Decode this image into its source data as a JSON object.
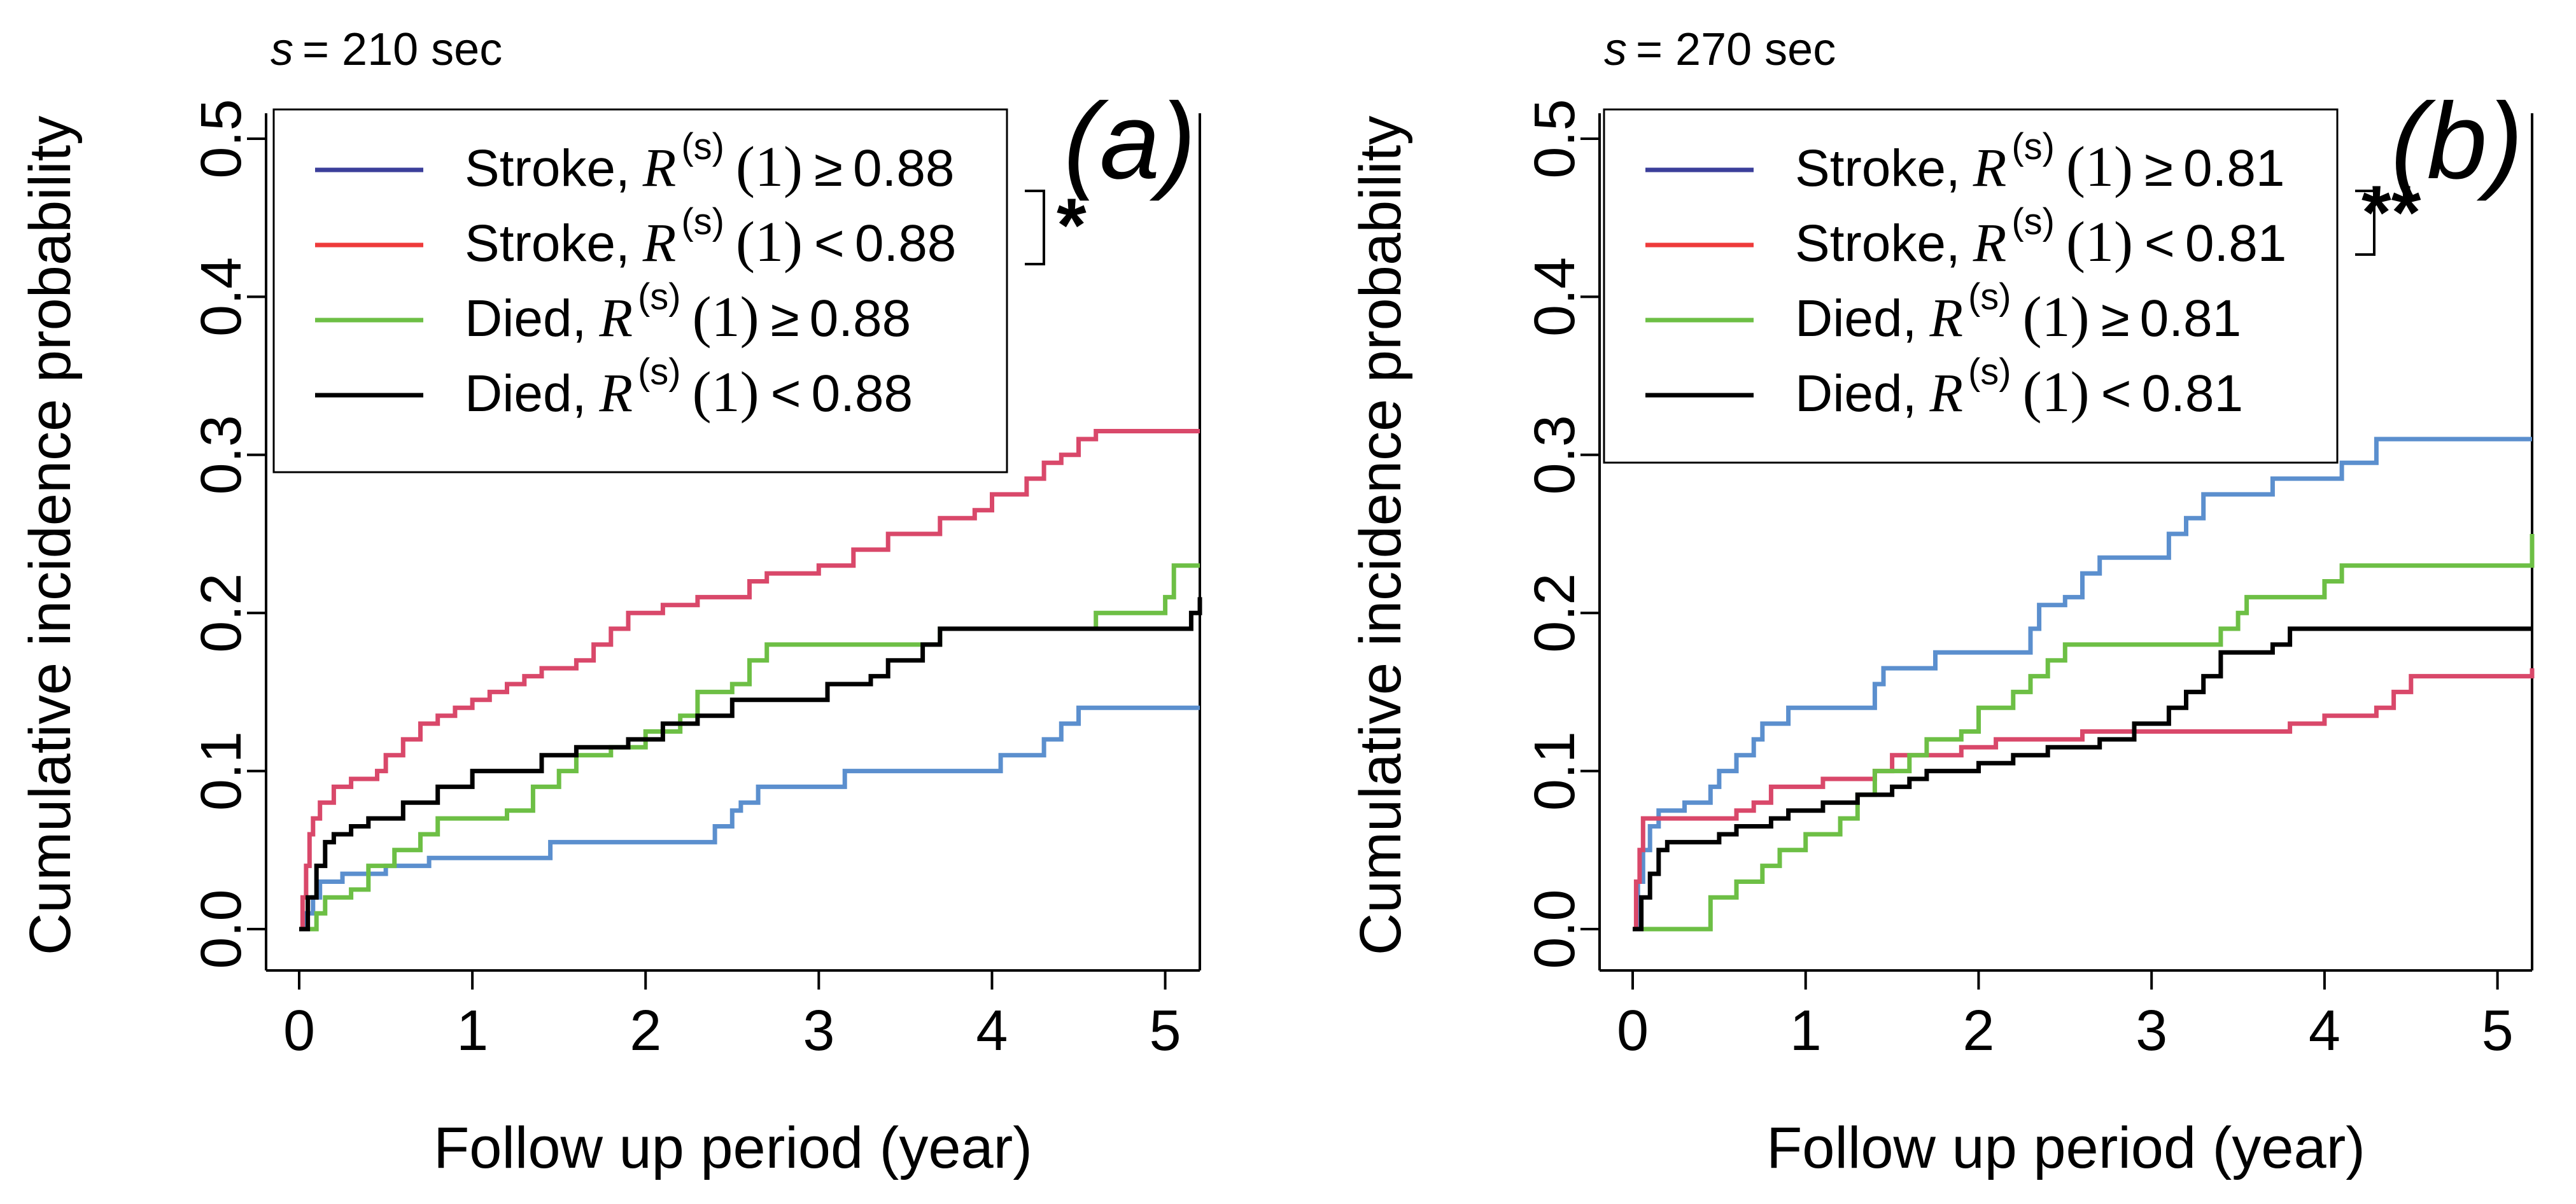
{
  "colors": {
    "stroke_high": "#5b8fce",
    "stroke_low": "#d9486a",
    "died_high": "#6dbf45",
    "died_low": "#000000",
    "legend_stroke_high": "#3b3f9a",
    "legend_stroke_low": "#ee3b3b"
  },
  "chart_data": [
    {
      "panel_label": "(a)",
      "s_prefix": "s",
      "s_value": "= 210 sec",
      "type": "line",
      "ylabel": "Cumulative incidence probability",
      "xlabel": "Follow up period (year)",
      "xlim": [
        0,
        5.2
      ],
      "ylim": [
        0,
        0.5
      ],
      "xticks": [
        0,
        1,
        2,
        3,
        4,
        5
      ],
      "yticks": [
        0.0,
        0.1,
        0.2,
        0.3,
        0.4,
        0.5
      ],
      "ytick_labels": [
        "0.0",
        "0.1",
        "0.2",
        "0.3",
        "0.4",
        "0.5"
      ],
      "significance": "*",
      "legend": [
        {
          "group": "Stroke,",
          "R": "R",
          "sup": "(s)",
          "arg": "(1)",
          "op": "≥",
          "threshold": "0.88",
          "color": "legend_stroke_high"
        },
        {
          "group": "Stroke,",
          "R": "R",
          "sup": "(s)",
          "arg": "(1)",
          "op": "<",
          "threshold": "0.88",
          "color": "legend_stroke_low"
        },
        {
          "group": "Died,",
          "R": "R",
          "sup": "(s)",
          "arg": "(1)",
          "op": "≥",
          "threshold": "0.88",
          "color": "died_high"
        },
        {
          "group": "Died,",
          "R": "R",
          "sup": "(s)",
          "arg": "(1)",
          "op": "<",
          "threshold": "0.88",
          "color": "died_low"
        }
      ],
      "series": [
        {
          "name": "Stroke, R(s)(1) ≥ 0.88",
          "color": "stroke_high",
          "points": [
            [
              0,
              0
            ],
            [
              0.03,
              0.01
            ],
            [
              0.08,
              0.02
            ],
            [
              0.12,
              0.03
            ],
            [
              0.25,
              0.035
            ],
            [
              0.5,
              0.04
            ],
            [
              0.75,
              0.045
            ],
            [
              1.2,
              0.045
            ],
            [
              1.45,
              0.055
            ],
            [
              2.3,
              0.055
            ],
            [
              2.4,
              0.065
            ],
            [
              2.5,
              0.075
            ],
            [
              2.55,
              0.08
            ],
            [
              2.65,
              0.09
            ],
            [
              3.1,
              0.09
            ],
            [
              3.15,
              0.1
            ],
            [
              4.0,
              0.1
            ],
            [
              4.05,
              0.11
            ],
            [
              4.3,
              0.12
            ],
            [
              4.4,
              0.13
            ],
            [
              4.5,
              0.14
            ],
            [
              5.2,
              0.14
            ]
          ]
        },
        {
          "name": "Stroke, R(s)(1) < 0.88",
          "color": "stroke_low",
          "points": [
            [
              0,
              0
            ],
            [
              0.02,
              0.02
            ],
            [
              0.04,
              0.04
            ],
            [
              0.06,
              0.06
            ],
            [
              0.08,
              0.07
            ],
            [
              0.12,
              0.08
            ],
            [
              0.2,
              0.09
            ],
            [
              0.3,
              0.095
            ],
            [
              0.45,
              0.1
            ],
            [
              0.5,
              0.11
            ],
            [
              0.6,
              0.12
            ],
            [
              0.7,
              0.13
            ],
            [
              0.8,
              0.135
            ],
            [
              0.9,
              0.14
            ],
            [
              1.0,
              0.145
            ],
            [
              1.1,
              0.15
            ],
            [
              1.2,
              0.155
            ],
            [
              1.3,
              0.16
            ],
            [
              1.4,
              0.165
            ],
            [
              1.6,
              0.17
            ],
            [
              1.7,
              0.18
            ],
            [
              1.8,
              0.19
            ],
            [
              1.9,
              0.2
            ],
            [
              2.1,
              0.205
            ],
            [
              2.3,
              0.21
            ],
            [
              2.6,
              0.22
            ],
            [
              2.7,
              0.225
            ],
            [
              3.0,
              0.23
            ],
            [
              3.2,
              0.24
            ],
            [
              3.4,
              0.25
            ],
            [
              3.7,
              0.26
            ],
            [
              3.9,
              0.265
            ],
            [
              4.0,
              0.275
            ],
            [
              4.2,
              0.285
            ],
            [
              4.3,
              0.295
            ],
            [
              4.4,
              0.3
            ],
            [
              4.5,
              0.31
            ],
            [
              4.6,
              0.315
            ],
            [
              5.2,
              0.315
            ]
          ]
        },
        {
          "name": "Died, R(s)(1) ≥ 0.88",
          "color": "died_high",
          "points": [
            [
              0,
              0
            ],
            [
              0.1,
              0.01
            ],
            [
              0.15,
              0.02
            ],
            [
              0.3,
              0.025
            ],
            [
              0.4,
              0.04
            ],
            [
              0.55,
              0.05
            ],
            [
              0.7,
              0.06
            ],
            [
              0.8,
              0.07
            ],
            [
              1.2,
              0.075
            ],
            [
              1.35,
              0.09
            ],
            [
              1.5,
              0.1
            ],
            [
              1.6,
              0.11
            ],
            [
              1.8,
              0.115
            ],
            [
              2.0,
              0.125
            ],
            [
              2.2,
              0.135
            ],
            [
              2.3,
              0.15
            ],
            [
              2.5,
              0.155
            ],
            [
              2.6,
              0.17
            ],
            [
              2.7,
              0.18
            ],
            [
              3.6,
              0.18
            ],
            [
              3.7,
              0.19
            ],
            [
              4.5,
              0.19
            ],
            [
              4.6,
              0.2
            ],
            [
              5.0,
              0.21
            ],
            [
              5.05,
              0.23
            ],
            [
              5.2,
              0.23
            ]
          ]
        },
        {
          "name": "Died, R(s)(1) < 0.88",
          "color": "died_low",
          "points": [
            [
              0,
              0
            ],
            [
              0.05,
              0.02
            ],
            [
              0.1,
              0.04
            ],
            [
              0.15,
              0.055
            ],
            [
              0.2,
              0.06
            ],
            [
              0.3,
              0.065
            ],
            [
              0.4,
              0.07
            ],
            [
              0.6,
              0.08
            ],
            [
              0.8,
              0.09
            ],
            [
              1.0,
              0.1
            ],
            [
              1.3,
              0.1
            ],
            [
              1.4,
              0.11
            ],
            [
              1.6,
              0.115
            ],
            [
              1.9,
              0.12
            ],
            [
              2.1,
              0.13
            ],
            [
              2.3,
              0.135
            ],
            [
              2.5,
              0.145
            ],
            [
              3.0,
              0.145
            ],
            [
              3.05,
              0.155
            ],
            [
              3.3,
              0.16
            ],
            [
              3.4,
              0.17
            ],
            [
              3.6,
              0.18
            ],
            [
              3.7,
              0.19
            ],
            [
              4.5,
              0.19
            ],
            [
              5.1,
              0.19
            ],
            [
              5.15,
              0.2
            ],
            [
              5.2,
              0.21
            ]
          ]
        }
      ]
    },
    {
      "panel_label": "(b)",
      "s_prefix": "s",
      "s_value": "= 270 sec",
      "type": "line",
      "ylabel": "Cumulative incidence probability",
      "xlabel": "Follow up period (year)",
      "xlim": [
        0,
        5.2
      ],
      "ylim": [
        0,
        0.5
      ],
      "xticks": [
        0,
        1,
        2,
        3,
        4,
        5
      ],
      "yticks": [
        0.0,
        0.1,
        0.2,
        0.3,
        0.4,
        0.5
      ],
      "ytick_labels": [
        "0.0",
        "0.1",
        "0.2",
        "0.3",
        "0.4",
        "0.5"
      ],
      "significance": "**",
      "legend": [
        {
          "group": "Stroke,",
          "R": "R",
          "sup": "(s)",
          "arg": "(1)",
          "op": "≥",
          "threshold": "0.81",
          "color": "legend_stroke_high"
        },
        {
          "group": "Stroke,",
          "R": "R",
          "sup": "(s)",
          "arg": "(1)",
          "op": "<",
          "threshold": "0.81",
          "color": "legend_stroke_low"
        },
        {
          "group": "Died,",
          "R": "R",
          "sup": "(s)",
          "arg": "(1)",
          "op": "≥",
          "threshold": "0.81",
          "color": "died_high"
        },
        {
          "group": "Died,",
          "R": "R",
          "sup": "(s)",
          "arg": "(1)",
          "op": "<",
          "threshold": "0.81",
          "color": "died_low"
        }
      ],
      "series": [
        {
          "name": "Stroke, R(s)(1) ≥ 0.81",
          "color": "stroke_high",
          "points": [
            [
              0,
              0
            ],
            [
              0.03,
              0.03
            ],
            [
              0.06,
              0.05
            ],
            [
              0.1,
              0.065
            ],
            [
              0.15,
              0.075
            ],
            [
              0.3,
              0.08
            ],
            [
              0.45,
              0.09
            ],
            [
              0.5,
              0.1
            ],
            [
              0.6,
              0.11
            ],
            [
              0.7,
              0.12
            ],
            [
              0.75,
              0.13
            ],
            [
              0.9,
              0.14
            ],
            [
              1.3,
              0.14
            ],
            [
              1.4,
              0.155
            ],
            [
              1.45,
              0.165
            ],
            [
              1.7,
              0.165
            ],
            [
              1.75,
              0.175
            ],
            [
              2.2,
              0.175
            ],
            [
              2.3,
              0.19
            ],
            [
              2.35,
              0.205
            ],
            [
              2.5,
              0.21
            ],
            [
              2.6,
              0.225
            ],
            [
              2.7,
              0.235
            ],
            [
              3.0,
              0.235
            ],
            [
              3.1,
              0.25
            ],
            [
              3.2,
              0.26
            ],
            [
              3.3,
              0.275
            ],
            [
              3.6,
              0.275
            ],
            [
              3.7,
              0.285
            ],
            [
              4.0,
              0.285
            ],
            [
              4.1,
              0.295
            ],
            [
              4.3,
              0.31
            ],
            [
              5.2,
              0.31
            ]
          ]
        },
        {
          "name": "Stroke, R(s)(1) < 0.81",
          "color": "stroke_low",
          "points": [
            [
              0,
              0
            ],
            [
              0.02,
              0.03
            ],
            [
              0.04,
              0.05
            ],
            [
              0.06,
              0.07
            ],
            [
              0.5,
              0.07
            ],
            [
              0.6,
              0.075
            ],
            [
              0.7,
              0.08
            ],
            [
              0.8,
              0.09
            ],
            [
              1.1,
              0.095
            ],
            [
              1.4,
              0.1
            ],
            [
              1.5,
              0.11
            ],
            [
              1.9,
              0.115
            ],
            [
              2.1,
              0.12
            ],
            [
              2.6,
              0.125
            ],
            [
              3.7,
              0.125
            ],
            [
              3.8,
              0.13
            ],
            [
              4.0,
              0.135
            ],
            [
              4.3,
              0.14
            ],
            [
              4.4,
              0.15
            ],
            [
              4.5,
              0.16
            ],
            [
              5.2,
              0.165
            ]
          ]
        },
        {
          "name": "Died, R(s)(1) ≥ 0.81",
          "color": "died_high",
          "points": [
            [
              0,
              0
            ],
            [
              0.4,
              0.0
            ],
            [
              0.45,
              0.02
            ],
            [
              0.6,
              0.03
            ],
            [
              0.75,
              0.04
            ],
            [
              0.85,
              0.05
            ],
            [
              1.0,
              0.06
            ],
            [
              1.2,
              0.07
            ],
            [
              1.3,
              0.085
            ],
            [
              1.4,
              0.1
            ],
            [
              1.6,
              0.11
            ],
            [
              1.7,
              0.12
            ],
            [
              1.9,
              0.125
            ],
            [
              2.0,
              0.14
            ],
            [
              2.2,
              0.15
            ],
            [
              2.3,
              0.16
            ],
            [
              2.4,
              0.17
            ],
            [
              2.5,
              0.18
            ],
            [
              3.3,
              0.18
            ],
            [
              3.4,
              0.19
            ],
            [
              3.5,
              0.2
            ],
            [
              3.55,
              0.21
            ],
            [
              4.0,
              0.22
            ],
            [
              4.1,
              0.23
            ],
            [
              5.15,
              0.23
            ],
            [
              5.2,
              0.25
            ]
          ]
        },
        {
          "name": "Died, R(s)(1) < 0.81",
          "color": "died_low",
          "points": [
            [
              0,
              0
            ],
            [
              0.05,
              0.02
            ],
            [
              0.1,
              0.035
            ],
            [
              0.15,
              0.05
            ],
            [
              0.2,
              0.055
            ],
            [
              0.5,
              0.06
            ],
            [
              0.6,
              0.065
            ],
            [
              0.8,
              0.07
            ],
            [
              0.9,
              0.075
            ],
            [
              1.1,
              0.08
            ],
            [
              1.3,
              0.085
            ],
            [
              1.5,
              0.09
            ],
            [
              1.6,
              0.095
            ],
            [
              1.7,
              0.1
            ],
            [
              2.0,
              0.105
            ],
            [
              2.2,
              0.11
            ],
            [
              2.4,
              0.115
            ],
            [
              2.7,
              0.12
            ],
            [
              2.9,
              0.13
            ],
            [
              3.1,
              0.14
            ],
            [
              3.2,
              0.15
            ],
            [
              3.3,
              0.16
            ],
            [
              3.4,
              0.175
            ],
            [
              3.7,
              0.18
            ],
            [
              3.8,
              0.19
            ],
            [
              5.2,
              0.19
            ]
          ]
        }
      ]
    }
  ]
}
